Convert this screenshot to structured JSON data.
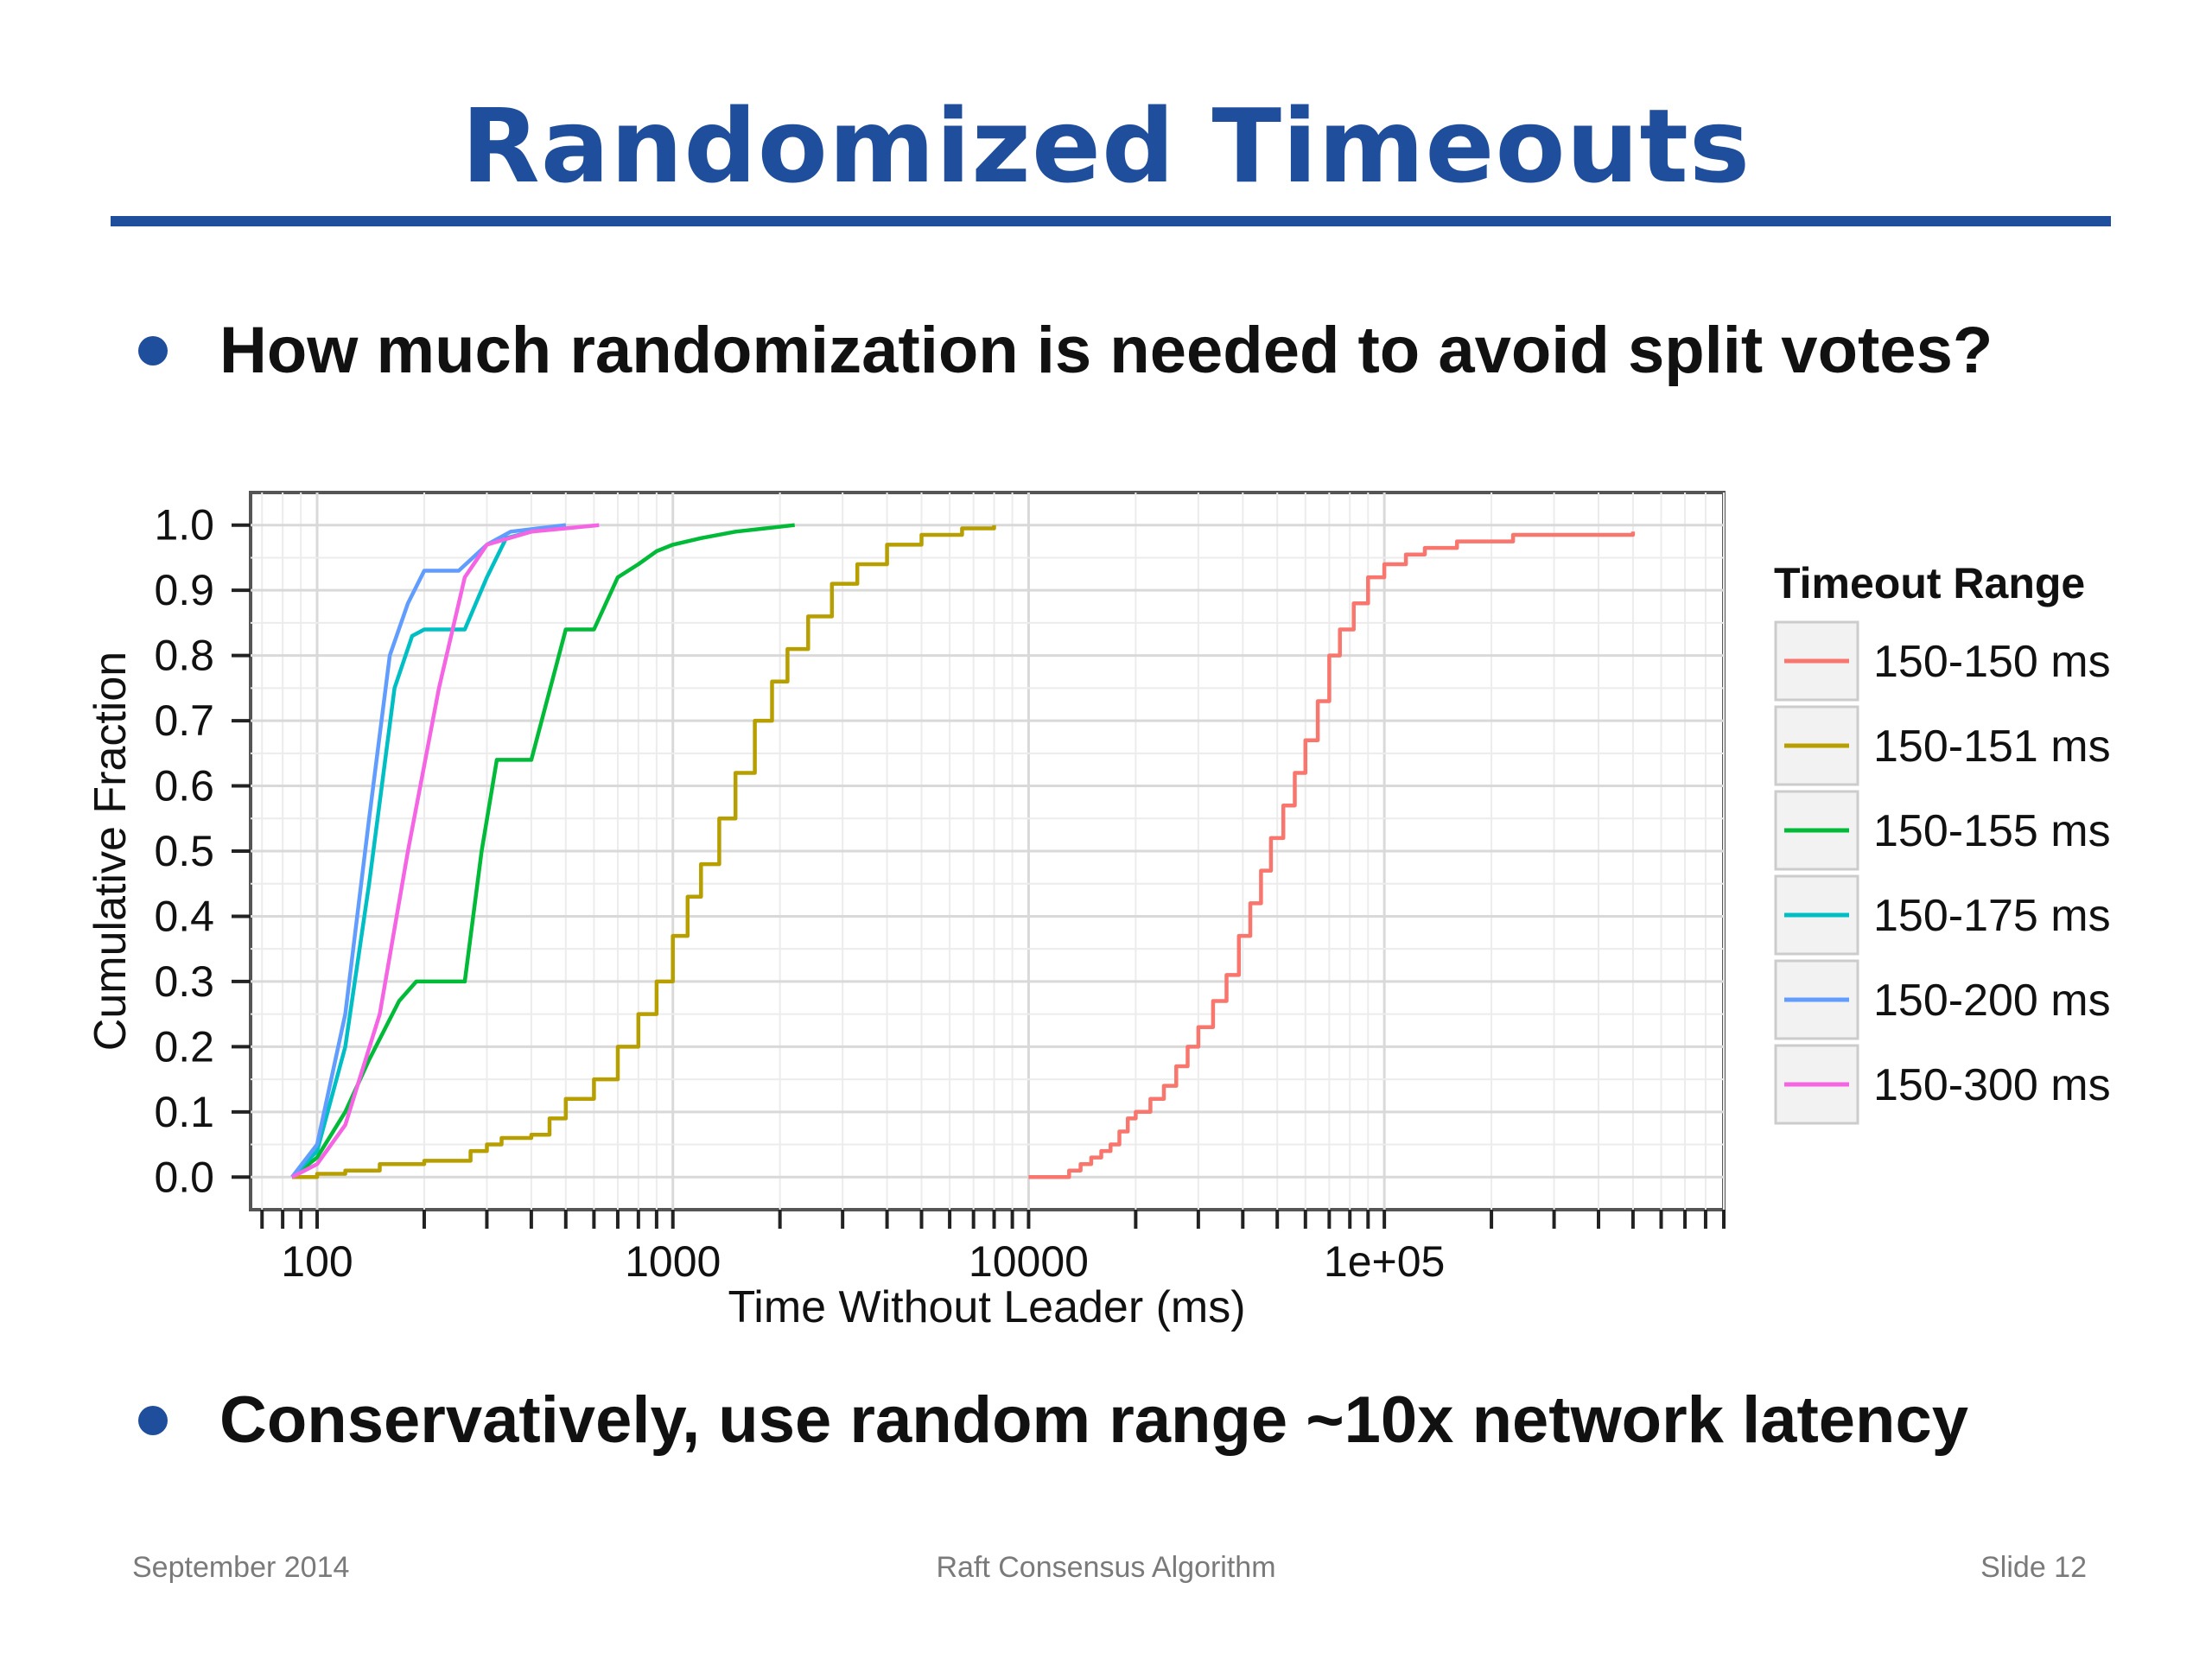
{
  "slide": {
    "title": "Randomized Timeouts",
    "bullets": [
      "How much randomization is needed to avoid split votes?",
      "Conservatively, use random range ~10x network latency"
    ],
    "footer": {
      "left": "September 2014",
      "center": "Raft Consensus Algorithm",
      "right": "Slide 12"
    }
  },
  "chart_data": {
    "type": "line",
    "xlabel": "Time Without Leader (ms)",
    "ylabel": "Cumulative Fraction",
    "x_scale": "log10",
    "xlim": [
      65,
      900000
    ],
    "ylim": [
      -0.05,
      1.05
    ],
    "x_ticks": [
      100,
      1000,
      10000,
      100000
    ],
    "x_tick_labels": [
      "100",
      "1000",
      "10000",
      "1e+05"
    ],
    "y_ticks": [
      0.0,
      0.1,
      0.2,
      0.3,
      0.4,
      0.5,
      0.6,
      0.7,
      0.8,
      0.9,
      1.0
    ],
    "y_tick_labels": [
      "0.0",
      "0.1",
      "0.2",
      "0.3",
      "0.4",
      "0.5",
      "0.6",
      "0.7",
      "0.8",
      "0.9",
      "1.0"
    ],
    "grid": true,
    "legend_title": "Timeout Range",
    "legend_position": "right",
    "series": [
      {
        "name": "150-150 ms",
        "color": "#f8766d",
        "step": true,
        "points": [
          [
            10000,
            0.0
          ],
          [
            12500,
            0.0
          ],
          [
            13000,
            0.01
          ],
          [
            14000,
            0.02
          ],
          [
            15000,
            0.03
          ],
          [
            16000,
            0.04
          ],
          [
            17000,
            0.05
          ],
          [
            18000,
            0.07
          ],
          [
            19000,
            0.09
          ],
          [
            20000,
            0.1
          ],
          [
            22000,
            0.12
          ],
          [
            24000,
            0.14
          ],
          [
            26000,
            0.17
          ],
          [
            28000,
            0.2
          ],
          [
            30000,
            0.23
          ],
          [
            33000,
            0.27
          ],
          [
            36000,
            0.31
          ],
          [
            39000,
            0.37
          ],
          [
            42000,
            0.42
          ],
          [
            45000,
            0.47
          ],
          [
            48000,
            0.52
          ],
          [
            52000,
            0.57
          ],
          [
            56000,
            0.62
          ],
          [
            60000,
            0.67
          ],
          [
            65000,
            0.73
          ],
          [
            70000,
            0.8
          ],
          [
            75000,
            0.84
          ],
          [
            82000,
            0.88
          ],
          [
            90000,
            0.92
          ],
          [
            100000,
            0.94
          ],
          [
            115000,
            0.955
          ],
          [
            130000,
            0.965
          ],
          [
            160000,
            0.975
          ],
          [
            230000,
            0.985
          ],
          [
            500000,
            0.99
          ]
        ]
      },
      {
        "name": "150-151 ms",
        "color": "#b79f00",
        "step": true,
        "points": [
          [
            85,
            0.0
          ],
          [
            100,
            0.005
          ],
          [
            120,
            0.01
          ],
          [
            150,
            0.02
          ],
          [
            200,
            0.025
          ],
          [
            250,
            0.025
          ],
          [
            270,
            0.04
          ],
          [
            300,
            0.05
          ],
          [
            330,
            0.06
          ],
          [
            400,
            0.065
          ],
          [
            450,
            0.09
          ],
          [
            500,
            0.12
          ],
          [
            600,
            0.15
          ],
          [
            700,
            0.2
          ],
          [
            800,
            0.25
          ],
          [
            900,
            0.3
          ],
          [
            1000,
            0.37
          ],
          [
            1100,
            0.43
          ],
          [
            1200,
            0.48
          ],
          [
            1350,
            0.55
          ],
          [
            1500,
            0.62
          ],
          [
            1700,
            0.7
          ],
          [
            1900,
            0.76
          ],
          [
            2100,
            0.81
          ],
          [
            2400,
            0.86
          ],
          [
            2800,
            0.91
          ],
          [
            3300,
            0.94
          ],
          [
            4000,
            0.97
          ],
          [
            5000,
            0.985
          ],
          [
            6500,
            0.995
          ],
          [
            8000,
            1.0
          ]
        ]
      },
      {
        "name": "150-155 ms",
        "color": "#00ba38",
        "step": false,
        "points": [
          [
            85,
            0.0
          ],
          [
            100,
            0.03
          ],
          [
            120,
            0.1
          ],
          [
            140,
            0.18
          ],
          [
            170,
            0.27
          ],
          [
            190,
            0.3
          ],
          [
            260,
            0.3
          ],
          [
            290,
            0.5
          ],
          [
            320,
            0.64
          ],
          [
            400,
            0.64
          ],
          [
            500,
            0.84
          ],
          [
            600,
            0.84
          ],
          [
            700,
            0.92
          ],
          [
            800,
            0.94
          ],
          [
            900,
            0.96
          ],
          [
            1000,
            0.97
          ],
          [
            1200,
            0.98
          ],
          [
            1500,
            0.99
          ],
          [
            2200,
            1.0
          ]
        ]
      },
      {
        "name": "150-175 ms",
        "color": "#00bfc4",
        "step": false,
        "points": [
          [
            85,
            0.0
          ],
          [
            100,
            0.04
          ],
          [
            120,
            0.2
          ],
          [
            140,
            0.45
          ],
          [
            165,
            0.75
          ],
          [
            185,
            0.83
          ],
          [
            200,
            0.84
          ],
          [
            260,
            0.84
          ],
          [
            300,
            0.92
          ],
          [
            340,
            0.98
          ],
          [
            400,
            0.99
          ],
          [
            500,
            1.0
          ]
        ]
      },
      {
        "name": "150-200 ms",
        "color": "#619cff",
        "step": false,
        "points": [
          [
            85,
            0.0
          ],
          [
            100,
            0.05
          ],
          [
            120,
            0.25
          ],
          [
            140,
            0.55
          ],
          [
            160,
            0.8
          ],
          [
            180,
            0.88
          ],
          [
            200,
            0.93
          ],
          [
            250,
            0.93
          ],
          [
            300,
            0.97
          ],
          [
            350,
            0.99
          ],
          [
            500,
            1.0
          ]
        ]
      },
      {
        "name": "150-300 ms",
        "color": "#f564e3",
        "step": false,
        "points": [
          [
            85,
            0.0
          ],
          [
            100,
            0.02
          ],
          [
            120,
            0.08
          ],
          [
            150,
            0.25
          ],
          [
            180,
            0.5
          ],
          [
            220,
            0.75
          ],
          [
            260,
            0.92
          ],
          [
            300,
            0.97
          ],
          [
            400,
            0.99
          ],
          [
            620,
            1.0
          ]
        ]
      }
    ]
  }
}
